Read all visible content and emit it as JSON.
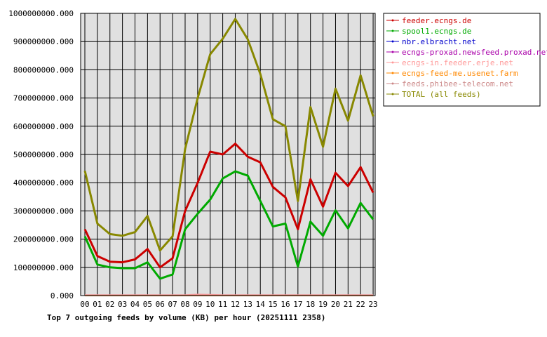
{
  "chart_data": {
    "type": "line",
    "title": "Top 7 outgoing feeds by volume (KB) per hour (20251111 2358)",
    "xlabel": "",
    "ylabel": "",
    "categories": [
      "00",
      "01",
      "02",
      "03",
      "04",
      "05",
      "06",
      "07",
      "08",
      "09",
      "10",
      "11",
      "12",
      "13",
      "14",
      "15",
      "16",
      "17",
      "18",
      "19",
      "20",
      "21",
      "22",
      "23"
    ],
    "ylim": [
      0,
      1000000000
    ],
    "y_ticks": [
      0,
      100000000,
      200000000,
      300000000,
      400000000,
      500000000,
      600000000,
      700000000,
      800000000,
      900000000,
      1000000000
    ],
    "y_tick_labels": [
      "0.000",
      "100000000.000",
      "200000000.000",
      "300000000.000",
      "400000000.000",
      "500000000.000",
      "600000000.000",
      "700000000.000",
      "800000000.000",
      "900000000.000",
      "1000000000.000"
    ],
    "grid": true,
    "legend_position": "right",
    "series": [
      {
        "name": "feeder.ecngs.de",
        "color": "#cc0000",
        "values": [
          235000000,
          140000000,
          120000000,
          118000000,
          128000000,
          165000000,
          100000000,
          132000000,
          300000000,
          400000000,
          510000000,
          500000000,
          538000000,
          492000000,
          472000000,
          385000000,
          348000000,
          235000000,
          412000000,
          315000000,
          435000000,
          388000000,
          455000000,
          365000000
        ]
      },
      {
        "name": "spool1.ecngs.de",
        "color": "#00aa00",
        "values": [
          210000000,
          110000000,
          100000000,
          97000000,
          97000000,
          118000000,
          60000000,
          75000000,
          235000000,
          290000000,
          340000000,
          415000000,
          440000000,
          425000000,
          335000000,
          245000000,
          255000000,
          103000000,
          262000000,
          212000000,
          302000000,
          238000000,
          328000000,
          270000000
        ]
      },
      {
        "name": "nbr.elbracht.net",
        "color": "#0000cc",
        "values": [
          0,
          0,
          0,
          0,
          0,
          0,
          0,
          0,
          0,
          0,
          0,
          0,
          0,
          0,
          0,
          0,
          0,
          0,
          0,
          0,
          0,
          0,
          0,
          0
        ]
      },
      {
        "name": "ecngs-proxad.newsfeed.proxad.net",
        "color": "#aa00aa",
        "values": [
          0,
          0,
          0,
          0,
          0,
          0,
          0,
          0,
          0,
          0,
          0,
          0,
          0,
          0,
          0,
          0,
          0,
          0,
          0,
          0,
          0,
          0,
          0,
          0
        ]
      },
      {
        "name": "ecngs-in.feeder.erje.net",
        "color": "#ff9999",
        "values": [
          2000000,
          2000000,
          2000000,
          2000000,
          2000000,
          2000000,
          2000000,
          2000000,
          2000000,
          4000000,
          3000000,
          2000000,
          2000000,
          2000000,
          2000000,
          2000000,
          2000000,
          2000000,
          2000000,
          2000000,
          2000000,
          2000000,
          2000000,
          2000000
        ]
      },
      {
        "name": "ecngs-feed-me.usenet.farm",
        "color": "#ff8800",
        "values": [
          0,
          0,
          0,
          0,
          0,
          0,
          0,
          0,
          0,
          0,
          0,
          0,
          0,
          0,
          0,
          0,
          0,
          0,
          0,
          0,
          0,
          0,
          0,
          0
        ]
      },
      {
        "name": "feeds.phibee-telecom.net",
        "color": "#cc8888",
        "values": [
          1000000,
          1000000,
          1000000,
          1000000,
          1000000,
          1000000,
          1000000,
          1000000,
          1000000,
          1000000,
          1000000,
          1000000,
          1000000,
          1000000,
          1000000,
          1000000,
          1000000,
          1000000,
          1000000,
          1000000,
          1000000,
          1000000,
          1000000,
          1000000
        ]
      },
      {
        "name": "TOTAL (all feeds)",
        "color": "#888800",
        "values": [
          442000000,
          255000000,
          218000000,
          212000000,
          225000000,
          282000000,
          160000000,
          210000000,
          520000000,
          700000000,
          855000000,
          910000000,
          980000000,
          908000000,
          785000000,
          625000000,
          600000000,
          335000000,
          668000000,
          527000000,
          733000000,
          620000000,
          780000000,
          635000000
        ]
      }
    ]
  },
  "colors": {
    "plot_background": "#e0e0e0",
    "grid": "#000000",
    "axis": "#000000"
  }
}
